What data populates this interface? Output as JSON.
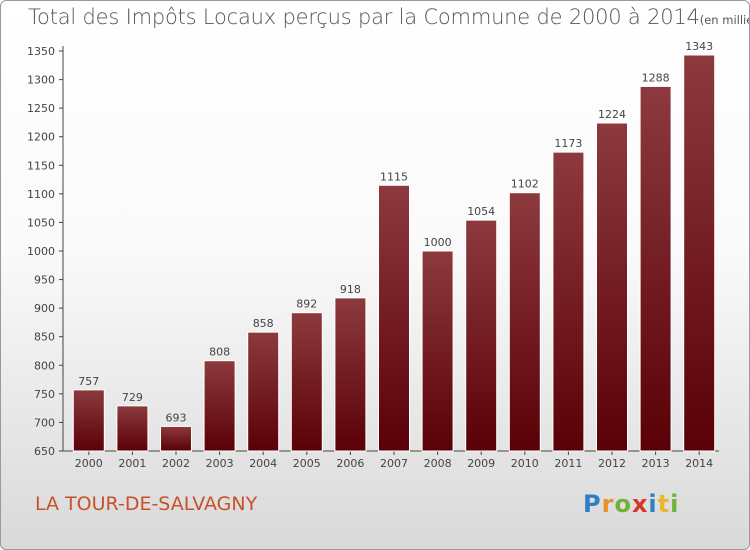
{
  "title": "Total des Impôts Locaux perçus par la Commune de 2000 à 2014",
  "unit": "(en milliers d'€)",
  "commune": "LA TOUR-DE-SALVAGNY",
  "logo": {
    "letters": [
      "P",
      "r",
      "o",
      "x",
      "i",
      "t",
      "i"
    ],
    "colors": [
      "#2f7fc1",
      "#e8902a",
      "#6fb23b",
      "#d8362b",
      "#2f7fc1",
      "#e8b82a",
      "#6fb23b"
    ]
  },
  "chart_data": {
    "type": "bar",
    "title": "Total des Impôts Locaux perçus par la Commune de 2000 à 2014",
    "categories": [
      "2000",
      "2001",
      "2002",
      "2003",
      "2004",
      "2005",
      "2006",
      "2007",
      "2008",
      "2009",
      "2010",
      "2011",
      "2012",
      "2013",
      "2014"
    ],
    "values": [
      757,
      729,
      693,
      808,
      858,
      892,
      918,
      1115,
      1000,
      1054,
      1102,
      1173,
      1224,
      1288,
      1343
    ],
    "ylim": [
      650,
      1350
    ],
    "yticks": [
      650,
      700,
      750,
      800,
      850,
      900,
      950,
      1000,
      1050,
      1100,
      1150,
      1200,
      1250,
      1300,
      1350
    ],
    "grid": false,
    "bar_color_top": "#8c3a3e",
    "bar_color_bottom": "#5a0006"
  }
}
